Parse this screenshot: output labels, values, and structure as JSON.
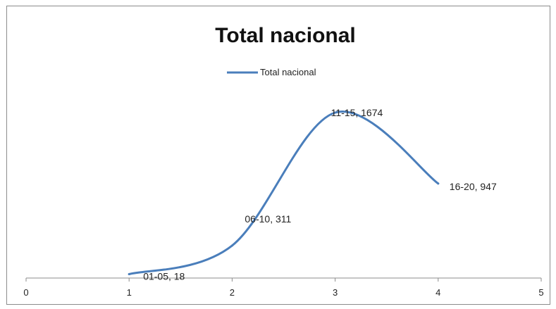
{
  "chart_data": {
    "type": "line",
    "title": "Total nacional",
    "series": [
      {
        "name": "Total nacional",
        "color": "#4a7ebb",
        "points": [
          {
            "x": 1,
            "y": 18,
            "label": "01-05, 18"
          },
          {
            "x": 2,
            "y": 311,
            "label": "06-10, 311"
          },
          {
            "x": 3,
            "y": 1674,
            "label": "11-15, 1674"
          },
          {
            "x": 4,
            "y": 947,
            "label": "16-20, 947"
          }
        ]
      }
    ],
    "x_ticks": [
      "0",
      "1",
      "2",
      "3",
      "4",
      "5"
    ],
    "xlim": [
      0,
      5
    ],
    "smoothed": true,
    "legend_position": "top-center",
    "grid": false,
    "y_axis_shown": false
  }
}
